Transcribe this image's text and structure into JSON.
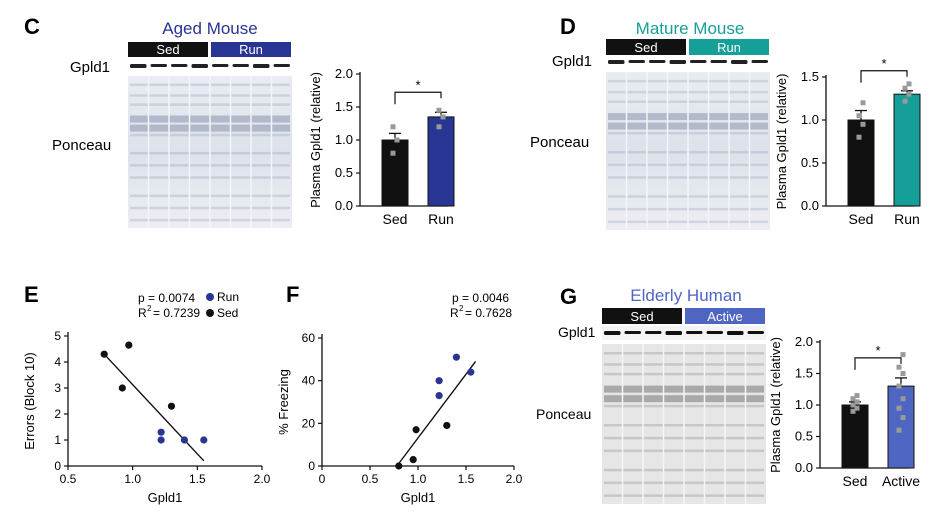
{
  "colors": {
    "sed": "#111111",
    "run": "#283593",
    "mature_run": "#169e98",
    "active": "#4e66c2",
    "dot_grey": "#9a9a9a",
    "aged_title": "#283593",
    "mature_title": "#169e98",
    "elderly_title": "#4e66c2"
  },
  "panels": {
    "C": {
      "letter": "C",
      "title": "Aged Mouse",
      "group1": "Sed",
      "group2": "Run",
      "band_label": "Gpld1",
      "stain_label": "Ponceau"
    },
    "D": {
      "letter": "D",
      "title": "Mature Mouse",
      "group1": "Sed",
      "group2": "Run",
      "band_label": "Gpld1",
      "stain_label": "Ponceau"
    },
    "E": {
      "letter": "E",
      "stats_p": "p = 0.0074",
      "stats_r": "R",
      "stats_r_sup": "2",
      "stats_r_val": "= 0.7239",
      "legend_run": "Run",
      "legend_sed": "Sed"
    },
    "F": {
      "letter": "F",
      "stats_p": "p = 0.0046",
      "stats_r": "R",
      "stats_r_sup": "2",
      "stats_r_val": "= 0.7628"
    },
    "G": {
      "letter": "G",
      "title": "Elderly Human",
      "group1": "Sed",
      "group2": "Active",
      "band_label": "Gpld1",
      "stain_label": "Ponceau"
    }
  },
  "chart_data": [
    {
      "panel": "C",
      "type": "bar",
      "categories": [
        "Sed",
        "Run"
      ],
      "values": [
        1.0,
        1.35
      ],
      "errors": [
        0.1,
        0.07
      ],
      "points": [
        [
          0.8,
          1.0,
          1.2
        ],
        [
          1.2,
          1.35,
          1.45
        ]
      ],
      "ylabel": "Plasma Gpld1 (relative)",
      "ylim": [
        0,
        2.0
      ],
      "yticks": [
        "0.0",
        "0.5",
        "1.0",
        "1.5",
        "2.0"
      ],
      "significance": "*"
    },
    {
      "panel": "D",
      "type": "bar",
      "categories": [
        "Sed",
        "Run"
      ],
      "values": [
        1.0,
        1.3
      ],
      "errors": [
        0.11,
        0.04
      ],
      "points": [
        [
          0.8,
          0.95,
          1.05,
          1.2
        ],
        [
          1.22,
          1.3,
          1.37,
          1.42
        ]
      ],
      "ylabel": "Plasma Gpld1 (relative)",
      "ylim": [
        0,
        1.5
      ],
      "yticks": [
        "0.0",
        "0.5",
        "1.0",
        "1.5"
      ],
      "significance": "*"
    },
    {
      "panel": "E",
      "type": "scatter",
      "xlabel": "Gpld1",
      "ylabel": "Errors (Block 10)",
      "xlim": [
        0.5,
        2.0
      ],
      "ylim": [
        0,
        5
      ],
      "xticks": [
        "0.5",
        "1.0",
        "1.5",
        "2.0"
      ],
      "yticks": [
        "0",
        "1",
        "2",
        "3",
        "4",
        "5"
      ],
      "series": [
        {
          "name": "Run",
          "x": [
            1.22,
            1.22,
            1.4,
            1.55
          ],
          "y": [
            1.0,
            1.3,
            1.0,
            1.0
          ]
        },
        {
          "name": "Sed",
          "x": [
            0.78,
            0.92,
            0.97,
            1.3
          ],
          "y": [
            4.3,
            3.0,
            4.65,
            2.3
          ]
        }
      ],
      "fit": {
        "x": [
          0.78,
          1.55
        ],
        "y": [
          4.3,
          0.2
        ]
      }
    },
    {
      "panel": "F",
      "type": "scatter",
      "xlabel": "Gpld1",
      "ylabel": "% Freezing",
      "xlim": [
        0,
        2.0
      ],
      "ylim": [
        0,
        60
      ],
      "xticks": [
        "0",
        "0.5",
        "1.0",
        "1.5",
        "2.0"
      ],
      "yticks": [
        "0",
        "20",
        "40",
        "60"
      ],
      "series": [
        {
          "name": "Run",
          "x": [
            1.22,
            1.22,
            1.4,
            1.55
          ],
          "y": [
            40,
            33,
            51,
            44
          ]
        },
        {
          "name": "Sed",
          "x": [
            0.8,
            0.95,
            0.98,
            1.3
          ],
          "y": [
            0,
            3,
            17,
            19
          ]
        }
      ],
      "fit": {
        "x": [
          0.78,
          1.6
        ],
        "y": [
          0,
          49
        ]
      }
    },
    {
      "panel": "G",
      "type": "bar",
      "categories": [
        "Sed",
        "Active"
      ],
      "values": [
        1.0,
        1.3
      ],
      "errors": [
        0.05,
        0.13
      ],
      "points": [
        [
          0.9,
          0.95,
          1.0,
          1.05,
          1.1,
          1.15
        ],
        [
          0.6,
          0.8,
          0.95,
          1.1,
          1.3,
          1.5,
          1.6,
          1.8
        ]
      ],
      "ylabel": "Plasma Gpld1 (relative)",
      "ylim": [
        0,
        2.0
      ],
      "yticks": [
        "0.0",
        "0.5",
        "1.0",
        "1.5",
        "2.0"
      ],
      "significance": "*"
    }
  ]
}
